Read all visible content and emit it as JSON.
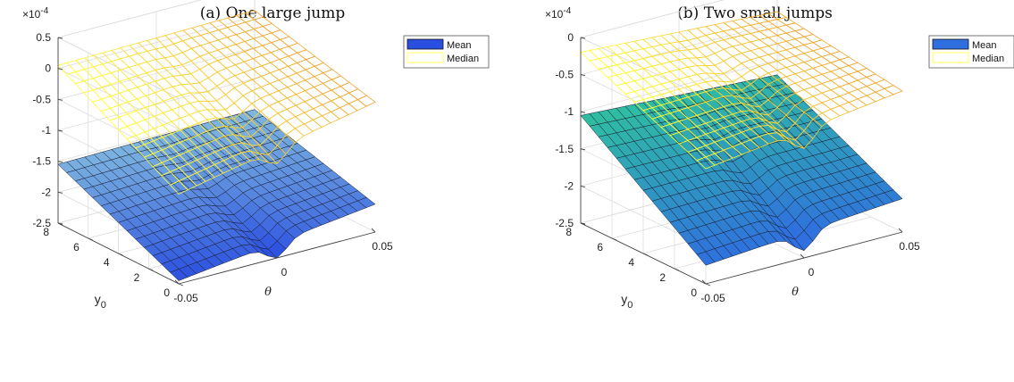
{
  "chart_data": [
    {
      "type": "surface",
      "title": "(a) One large jump",
      "exponent_label": "×10",
      "exponent_power": "-4",
      "xlabel": "θ",
      "ylabel": "y",
      "ylabel_sub": "0",
      "x_ticks": [
        "-0.05",
        "0",
        "0.05"
      ],
      "y_ticks": [
        "0",
        "2",
        "4",
        "6",
        "8"
      ],
      "z_ticks": [
        "0.5",
        "0",
        "-0.5",
        "-1",
        "-1.5",
        "-2",
        "-2.5"
      ],
      "xlim": [
        -0.05,
        0.05
      ],
      "ylim": [
        0,
        8
      ],
      "zlim": [
        -2.5,
        0.5
      ],
      "grid": true,
      "legend_position": "top-right",
      "series": [
        {
          "name": "Mean",
          "style": "filled",
          "values": {
            "y0_max_theta_min": -1.55,
            "y0_min_theta_min": -2.45,
            "y0_max_theta_max": -1.5,
            "y0_min_theta_max": -2.05
          },
          "color_low": "#2a4fe0",
          "color_high": "#7fb8e0"
        },
        {
          "name": "Median",
          "style": "mesh",
          "values": {
            "y0_max_theta_min": 0.05,
            "y0_min_theta_min": -1.05,
            "y0_max_theta_max": 0.1,
            "y0_min_theta_max": -0.4
          },
          "color_low": "#ffff33",
          "color_high": "#f0a030"
        }
      ]
    },
    {
      "type": "surface",
      "title": "(b) Two small jumps",
      "exponent_label": "×10",
      "exponent_power": "-4",
      "xlabel": "θ",
      "ylabel": "y",
      "ylabel_sub": "0",
      "x_ticks": [
        "-0.05",
        "0",
        "0.05"
      ],
      "y_ticks": [
        "0",
        "2",
        "4",
        "6",
        "8"
      ],
      "z_ticks": [
        "0",
        "-0.5",
        "-1",
        "-1.5",
        "-2",
        "-2.5"
      ],
      "xlim": [
        -0.05,
        0.05
      ],
      "ylim": [
        0,
        8
      ],
      "zlim": [
        -2.5,
        0
      ],
      "grid": true,
      "legend_position": "top-right",
      "series": [
        {
          "name": "Mean",
          "style": "filled",
          "values": {
            "y0_max_theta_min": -1.05,
            "y0_min_theta_min": -2.25,
            "y0_max_theta_max": -1.2,
            "y0_min_theta_max": -2.05
          },
          "color_low": "#2f6fe0",
          "color_high": "#2fc0a0"
        },
        {
          "name": "Median",
          "style": "mesh",
          "values": {
            "y0_max_theta_min": -0.2,
            "y0_min_theta_min": -0.95,
            "y0_max_theta_max": -0.35,
            "y0_min_theta_max": -0.6
          },
          "color_low": "#ffff33",
          "color_high": "#f0a030"
        }
      ]
    }
  ]
}
